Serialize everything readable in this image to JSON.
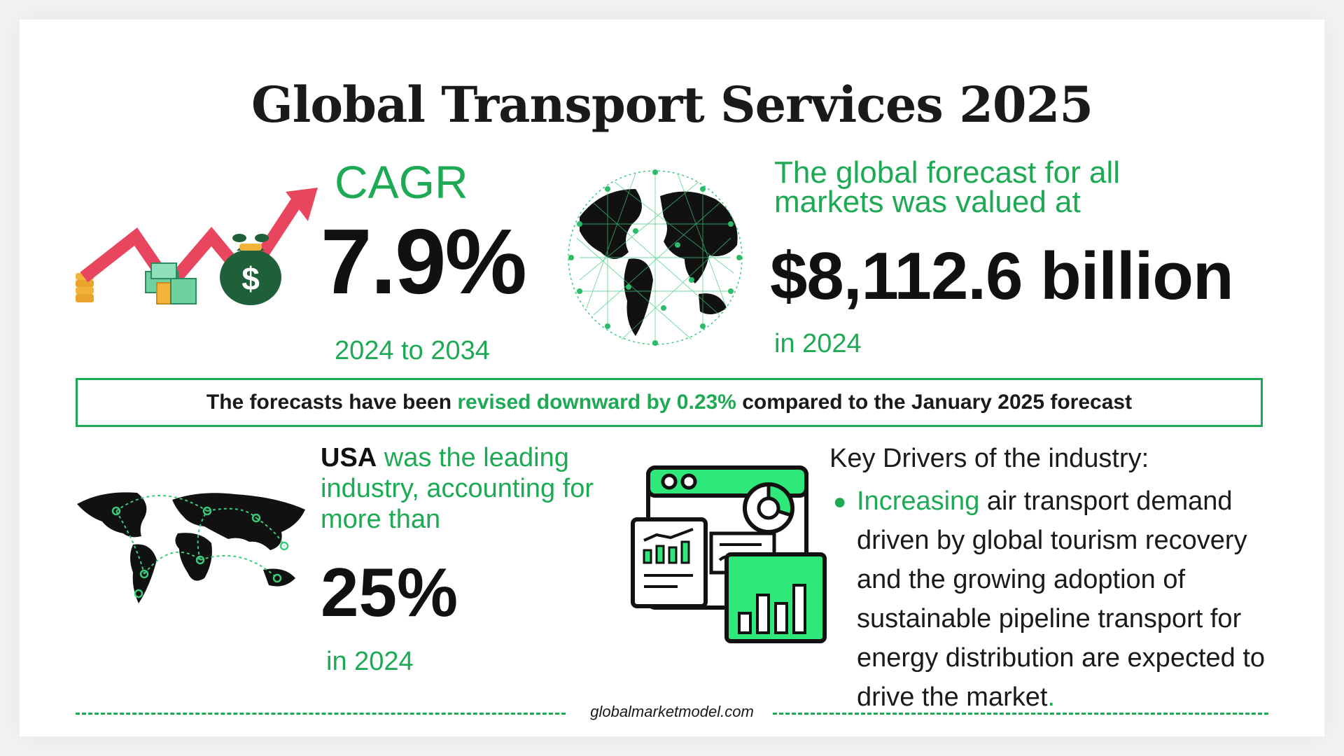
{
  "title": "Global Transport Services 2025",
  "cagr": {
    "label": "CAGR",
    "value": "7.9%",
    "period": "2024 to 2034"
  },
  "forecast": {
    "text": "The global forecast for all markets was valued at",
    "value": "$8,112.6 billion",
    "year": "in 2024"
  },
  "revision": {
    "prefix": "The forecasts have been ",
    "highlight": "revised downward by 0.23%",
    "suffix": " compared to the January 2025 forecast"
  },
  "usa": {
    "country": "USA",
    "text": " was the leading industry, accounting for more than",
    "value": "25%",
    "year": "in 2024"
  },
  "drivers": {
    "title": "Key Drivers of the industry:",
    "items": [
      {
        "highlight": "Increasing",
        "text": " air transport demand driven by global tourism recovery and the growing adoption of sustainable pipeline transport for energy distribution are expected to drive the market",
        "end": "."
      }
    ]
  },
  "footer": "globalmarketmodel.com",
  "icons": {
    "growth": "money-growth-arrow-icon",
    "globe": "network-globe-icon",
    "world_map": "world-map-connections-icon",
    "dashboard": "analytics-dashboard-icon"
  },
  "colors": {
    "accent": "#1eaa55",
    "arrow": "#e8465f",
    "text": "#111111"
  }
}
